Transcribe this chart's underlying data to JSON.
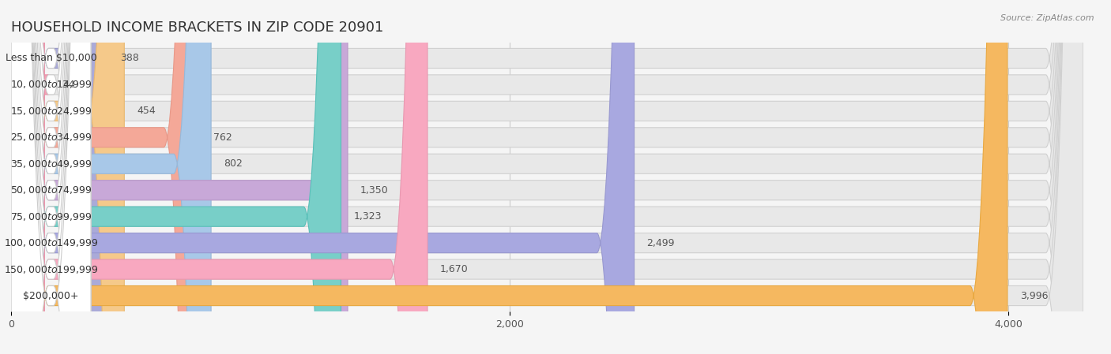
{
  "title": "HOUSEHOLD INCOME BRACKETS IN ZIP CODE 20901",
  "source": "Source: ZipAtlas.com",
  "categories": [
    "Less than $10,000",
    "$10,000 to $14,999",
    "$15,000 to $24,999",
    "$25,000 to $34,999",
    "$35,000 to $49,999",
    "$50,000 to $74,999",
    "$75,000 to $99,999",
    "$100,000 to $149,999",
    "$150,000 to $199,999",
    "$200,000+"
  ],
  "values": [
    388,
    134,
    454,
    762,
    802,
    1350,
    1323,
    2499,
    1670,
    3996
  ],
  "bar_colors": [
    "#aaaad8",
    "#f5a0b5",
    "#f5c98a",
    "#f4a898",
    "#a8c8e8",
    "#c8a8d8",
    "#78cfc8",
    "#a8a8e0",
    "#f8a8c0",
    "#f5b860"
  ],
  "bar_edge_colors": [
    "#9898c8",
    "#e890a8",
    "#e8b870",
    "#e89888",
    "#98b8d8",
    "#b898c8",
    "#58bfb8",
    "#9898d0",
    "#e898b0",
    "#e8a840"
  ],
  "xlim": [
    0,
    4300
  ],
  "xticks": [
    0,
    2000,
    4000
  ],
  "xticklabels": [
    "0",
    "2,000",
    "4,000"
  ],
  "value_labels": [
    "388",
    "134",
    "454",
    "762",
    "802",
    "1,350",
    "1,323",
    "2,499",
    "1,670",
    "3,996"
  ],
  "bg_color": "#f5f5f5",
  "bar_bg_color": "#e8e8e8",
  "bar_bg_edge_color": "#d0d0d0",
  "title_fontsize": 13,
  "label_fontsize": 9,
  "value_fontsize": 9
}
